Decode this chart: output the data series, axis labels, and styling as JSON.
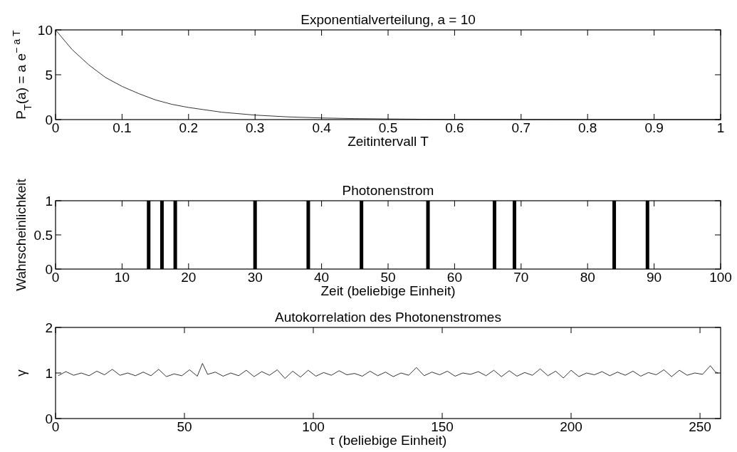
{
  "chart_data": [
    {
      "type": "line",
      "title": "Exponentialverteilung, a = 10",
      "xlabel": "Zeitintervall T",
      "ylabel": "P$_{T}$(a) = a e$^{− a T}$",
      "xlim": [
        0,
        1
      ],
      "ylim": [
        0,
        10
      ],
      "xticks": [
        0,
        0.1,
        0.2,
        0.3,
        0.4,
        0.5,
        0.6,
        0.7,
        0.8,
        0.9,
        1
      ],
      "yticks": [
        0,
        5,
        10
      ],
      "grid": false,
      "line_style": "solid",
      "series": [
        {
          "color": "#000000",
          "x": [
            0,
            0.025,
            0.05,
            0.075,
            0.1,
            0.125,
            0.15,
            0.175,
            0.2,
            0.25,
            0.3,
            0.35,
            0.4,
            0.45,
            0.5,
            0.55,
            0.6,
            0.7,
            0.8,
            0.9,
            1
          ],
          "values": [
            10,
            7.8,
            6.1,
            4.7,
            3.7,
            2.9,
            2.2,
            1.7,
            1.35,
            0.82,
            0.5,
            0.3,
            0.18,
            0.11,
            0.07,
            0.04,
            0.02,
            0.01,
            0,
            0,
            0
          ]
        }
      ]
    },
    {
      "type": "bar",
      "title": "Photonenstrom",
      "xlabel": "Zeit (beliebige Einheit)",
      "ylabel": "Wahrscheinlichkeit",
      "xlim": [
        0,
        100
      ],
      "ylim": [
        0,
        1
      ],
      "xticks": [
        0,
        10,
        20,
        30,
        40,
        50,
        60,
        70,
        80,
        90,
        100
      ],
      "yticks": [
        0,
        0.5,
        1
      ],
      "grid": false,
      "series": [
        {
          "color": "#000000",
          "x": [
            14,
            16,
            18,
            30,
            38,
            46,
            56,
            66,
            69,
            84,
            89
          ],
          "values": [
            1,
            1,
            1,
            1,
            1,
            1,
            1,
            1,
            1,
            1,
            1
          ]
        }
      ]
    },
    {
      "type": "line",
      "title": "Autokorrelation des Photonenstromes",
      "xlabel": "τ (beliebige Einheit)",
      "ylabel": "γ",
      "xlim": [
        0,
        258
      ],
      "ylim": [
        0,
        2
      ],
      "xticks": [
        0,
        50,
        100,
        150,
        200,
        250
      ],
      "yticks": [
        0,
        1,
        2
      ],
      "grid": false,
      "line_style": "solid",
      "series": [
        {
          "color": "#000000",
          "x": [
            1,
            4,
            7,
            10,
            13,
            16,
            19,
            22,
            25,
            28,
            31,
            34,
            37,
            40,
            43,
            46,
            49,
            52,
            55,
            57,
            59,
            62,
            65,
            68,
            71,
            74,
            77,
            80,
            83,
            86,
            89,
            92,
            95,
            98,
            101,
            104,
            107,
            110,
            113,
            116,
            119,
            122,
            125,
            128,
            131,
            134,
            137,
            140,
            143,
            146,
            149,
            152,
            155,
            158,
            161,
            164,
            167,
            170,
            173,
            176,
            179,
            182,
            185,
            188,
            191,
            194,
            197,
            200,
            203,
            206,
            209,
            212,
            215,
            218,
            221,
            224,
            227,
            230,
            233,
            236,
            239,
            242,
            245,
            248,
            251,
            254,
            256,
            257
          ],
          "values": [
            0.94,
            1.03,
            0.95,
            1.0,
            0.94,
            1.04,
            0.96,
            1.08,
            0.95,
            1.0,
            0.94,
            1.02,
            0.94,
            1.08,
            0.92,
            0.98,
            0.94,
            1.07,
            0.93,
            1.21,
            0.97,
            1.02,
            0.93,
            1.0,
            0.94,
            1.06,
            0.92,
            1.03,
            0.95,
            1.07,
            0.88,
            1.04,
            0.91,
            1.06,
            0.93,
            1.01,
            0.95,
            1.05,
            0.96,
            0.99,
            0.93,
            1.04,
            0.94,
            1.02,
            0.92,
            1.0,
            0.95,
            1.12,
            0.94,
            1.02,
            0.96,
            1.04,
            0.93,
            1.0,
            0.97,
            1.03,
            0.94,
            1.06,
            0.92,
            1.05,
            0.93,
            1.01,
            0.95,
            1.09,
            0.94,
            1.04,
            0.89,
            1.06,
            0.92,
            1.0,
            0.96,
            1.03,
            0.94,
            1.02,
            0.95,
            1.04,
            0.93,
            1.01,
            0.96,
            1.07,
            0.92,
            1.06,
            0.95,
            1.0,
            0.97,
            1.16,
            1.02,
            1.0
          ]
        }
      ]
    }
  ]
}
